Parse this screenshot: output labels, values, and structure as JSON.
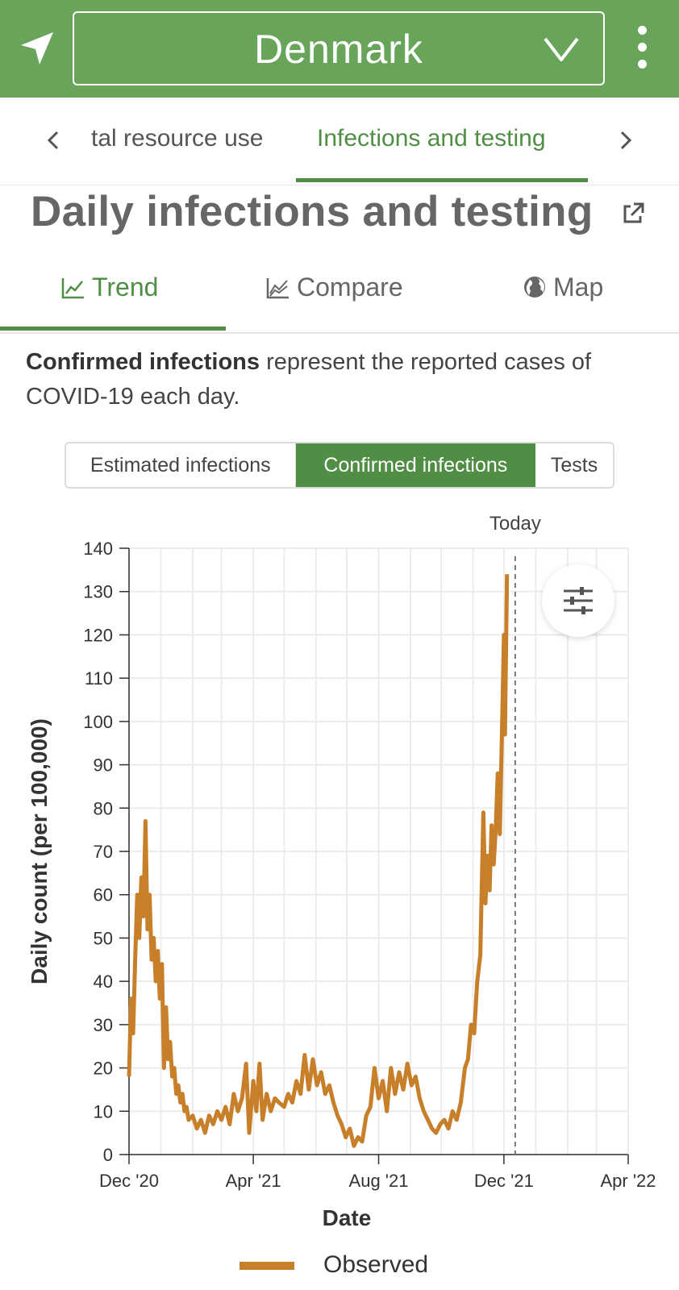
{
  "header": {
    "country": "Denmark",
    "colors": {
      "bar": "#68a55a",
      "accent": "#4f8e44"
    }
  },
  "section_tabs": {
    "items": [
      {
        "label": "tal resource use"
      },
      {
        "label": "Infections and testing",
        "active": true
      }
    ]
  },
  "page_title": "Daily infections and testing",
  "view_tabs": [
    {
      "label": "Trend",
      "icon": "line-chart-icon",
      "active": true
    },
    {
      "label": "Compare",
      "icon": "area-chart-icon"
    },
    {
      "label": "Map",
      "icon": "globe-icon"
    }
  ],
  "description": {
    "bold": "Confirmed infections",
    "rest": " represent the reported cases of COVID-19 each day."
  },
  "segmented": [
    {
      "label": "Estimated infections"
    },
    {
      "label": "Confirmed infections",
      "active": true
    },
    {
      "label": "Tests"
    }
  ],
  "chart_data": {
    "type": "line",
    "xlabel": "Date",
    "ylabel": "Daily count (per 100,000)",
    "ylim": [
      0,
      140
    ],
    "yticks": [
      0,
      10,
      20,
      30,
      40,
      50,
      60,
      70,
      80,
      90,
      100,
      110,
      120,
      130,
      140
    ],
    "xlim": [
      "2020-12-01",
      "2022-04-01"
    ],
    "xticks": [
      {
        "date": "2020-12-01",
        "label": "Dec '20"
      },
      {
        "date": "2021-04-01",
        "label": "Apr '21"
      },
      {
        "date": "2021-08-01",
        "label": "Aug '21"
      },
      {
        "date": "2021-12-01",
        "label": "Dec '21"
      },
      {
        "date": "2022-04-01",
        "label": "Apr '22"
      }
    ],
    "today": {
      "date": "2021-12-12",
      "label": "Today"
    },
    "grid": true,
    "legend_position": "bottom",
    "series": [
      {
        "name": "Observed",
        "color": "#c87f2a",
        "points": [
          [
            "2020-12-01",
            18
          ],
          [
            "2020-12-03",
            36
          ],
          [
            "2020-12-05",
            28
          ],
          [
            "2020-12-07",
            45
          ],
          [
            "2020-12-09",
            60
          ],
          [
            "2020-12-11",
            50
          ],
          [
            "2020-12-13",
            64
          ],
          [
            "2020-12-15",
            55
          ],
          [
            "2020-12-17",
            77
          ],
          [
            "2020-12-19",
            52
          ],
          [
            "2020-12-21",
            60
          ],
          [
            "2020-12-23",
            45
          ],
          [
            "2020-12-25",
            50
          ],
          [
            "2020-12-27",
            40
          ],
          [
            "2020-12-29",
            47
          ],
          [
            "2020-12-31",
            36
          ],
          [
            "2021-01-02",
            44
          ],
          [
            "2021-01-04",
            20
          ],
          [
            "2021-01-06",
            34
          ],
          [
            "2021-01-08",
            22
          ],
          [
            "2021-01-10",
            26
          ],
          [
            "2021-01-12",
            18
          ],
          [
            "2021-01-14",
            20
          ],
          [
            "2021-01-16",
            14
          ],
          [
            "2021-01-18",
            16
          ],
          [
            "2021-01-20",
            12
          ],
          [
            "2021-01-22",
            14
          ],
          [
            "2021-01-24",
            10
          ],
          [
            "2021-01-26",
            11
          ],
          [
            "2021-01-28",
            8
          ],
          [
            "2021-02-01",
            9
          ],
          [
            "2021-02-05",
            6
          ],
          [
            "2021-02-09",
            8
          ],
          [
            "2021-02-13",
            5
          ],
          [
            "2021-02-17",
            9
          ],
          [
            "2021-02-21",
            7
          ],
          [
            "2021-02-25",
            10
          ],
          [
            "2021-03-01",
            8
          ],
          [
            "2021-03-05",
            11
          ],
          [
            "2021-03-09",
            7
          ],
          [
            "2021-03-13",
            14
          ],
          [
            "2021-03-17",
            10
          ],
          [
            "2021-03-21",
            13
          ],
          [
            "2021-03-25",
            21
          ],
          [
            "2021-03-28",
            5
          ],
          [
            "2021-04-01",
            17
          ],
          [
            "2021-04-04",
            10
          ],
          [
            "2021-04-07",
            21
          ],
          [
            "2021-04-10",
            8
          ],
          [
            "2021-04-14",
            14
          ],
          [
            "2021-04-18",
            10
          ],
          [
            "2021-04-22",
            13
          ],
          [
            "2021-04-26",
            12
          ],
          [
            "2021-05-01",
            11
          ],
          [
            "2021-05-05",
            14
          ],
          [
            "2021-05-09",
            12
          ],
          [
            "2021-05-13",
            17
          ],
          [
            "2021-05-17",
            14
          ],
          [
            "2021-05-21",
            23
          ],
          [
            "2021-05-25",
            15
          ],
          [
            "2021-05-29",
            22
          ],
          [
            "2021-06-02",
            16
          ],
          [
            "2021-06-06",
            19
          ],
          [
            "2021-06-10",
            14
          ],
          [
            "2021-06-14",
            16
          ],
          [
            "2021-06-18",
            12
          ],
          [
            "2021-06-22",
            9
          ],
          [
            "2021-06-26",
            7
          ],
          [
            "2021-06-30",
            4
          ],
          [
            "2021-07-04",
            6
          ],
          [
            "2021-07-08",
            2
          ],
          [
            "2021-07-12",
            4
          ],
          [
            "2021-07-16",
            3
          ],
          [
            "2021-07-20",
            9
          ],
          [
            "2021-07-24",
            11
          ],
          [
            "2021-07-28",
            20
          ],
          [
            "2021-08-01",
            13
          ],
          [
            "2021-08-05",
            17
          ],
          [
            "2021-08-09",
            10
          ],
          [
            "2021-08-13",
            20
          ],
          [
            "2021-08-17",
            14
          ],
          [
            "2021-08-21",
            19
          ],
          [
            "2021-08-25",
            15
          ],
          [
            "2021-08-29",
            21
          ],
          [
            "2021-09-02",
            16
          ],
          [
            "2021-09-06",
            18
          ],
          [
            "2021-09-10",
            13
          ],
          [
            "2021-09-14",
            10
          ],
          [
            "2021-09-18",
            8
          ],
          [
            "2021-09-22",
            6
          ],
          [
            "2021-09-26",
            5
          ],
          [
            "2021-09-30",
            7
          ],
          [
            "2021-10-04",
            8
          ],
          [
            "2021-10-08",
            6
          ],
          [
            "2021-10-12",
            10
          ],
          [
            "2021-10-16",
            8
          ],
          [
            "2021-10-20",
            12
          ],
          [
            "2021-10-24",
            20
          ],
          [
            "2021-10-27",
            22
          ],
          [
            "2021-10-30",
            30
          ],
          [
            "2021-11-02",
            28
          ],
          [
            "2021-11-05",
            40
          ],
          [
            "2021-11-08",
            46
          ],
          [
            "2021-11-11",
            79
          ],
          [
            "2021-11-13",
            58
          ],
          [
            "2021-11-15",
            69
          ],
          [
            "2021-11-17",
            61
          ],
          [
            "2021-11-19",
            76
          ],
          [
            "2021-11-21",
            67
          ],
          [
            "2021-11-23",
            75
          ],
          [
            "2021-11-25",
            88
          ],
          [
            "2021-11-27",
            74
          ],
          [
            "2021-11-29",
            96
          ],
          [
            "2021-12-01",
            120
          ],
          [
            "2021-12-02",
            97
          ],
          [
            "2021-12-04",
            134
          ]
        ]
      }
    ]
  }
}
